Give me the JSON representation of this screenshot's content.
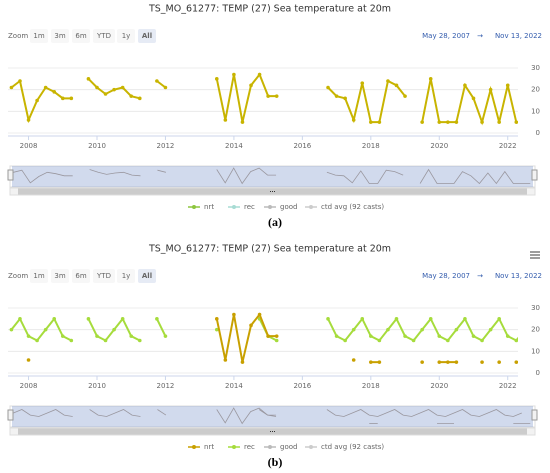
{
  "chart_data": [
    {
      "type": "line",
      "title": "TS_MO_61277: TEMP (27) Sea temperature at 20m",
      "caption": "(a)",
      "zoom_label": "Zoom",
      "zoom_buttons": [
        "1m",
        "3m",
        "6m",
        "YTD",
        "1y",
        "All"
      ],
      "zoom_selected": 5,
      "range_from": "May 28, 2007",
      "range_arrow": "→",
      "range_to": "Nov 13, 2022",
      "x": [
        2007.5,
        2007.75,
        2008,
        2008.25,
        2008.5,
        2008.75,
        2009,
        2009.25,
        2009.5,
        2009.75,
        2010,
        2010.25,
        2010.5,
        2010.75,
        2011,
        2011.25,
        2011.5,
        2011.75,
        2012,
        2012.25,
        2012.5,
        2012.75,
        2013,
        2013.25,
        2013.5,
        2013.75,
        2014,
        2014.25,
        2014.5,
        2014.75,
        2015,
        2015.25,
        2015.5,
        2015.75,
        2016,
        2016.25,
        2016.5,
        2016.75,
        2017,
        2017.25,
        2017.5,
        2017.75,
        2018,
        2018.25,
        2018.5,
        2018.75,
        2019,
        2019.25,
        2019.5,
        2019.75,
        2020,
        2020.25,
        2020.5,
        2020.75,
        2021,
        2021.25,
        2021.5,
        2021.75,
        2022,
        2022.25,
        2022.5,
        2022.75
      ],
      "series": [
        {
          "name": "nrt",
          "color": "#c8b400",
          "values": [
            21,
            24,
            6,
            15,
            21,
            19,
            16,
            16,
            null,
            25,
            21,
            18,
            20,
            21,
            17,
            16,
            null,
            24,
            21,
            null,
            null,
            null,
            null,
            null,
            25,
            6,
            27,
            5,
            22,
            27,
            17,
            17,
            null,
            null,
            null,
            null,
            null,
            21,
            17,
            16,
            6,
            23,
            5,
            5,
            24,
            22,
            17,
            null,
            5,
            25,
            5,
            5,
            5,
            22,
            16,
            5,
            20,
            5,
            22,
            5,
            5,
            5
          ]
        }
      ],
      "legend": [
        {
          "name": "nrt",
          "color": "#8dc63f"
        },
        {
          "name": "rec",
          "color": "#a8dcd4"
        },
        {
          "name": "good",
          "color": "#bbbbbb"
        },
        {
          "name": "ctd avg (92 casts)",
          "color": "#cccccc"
        }
      ],
      "xlim": [
        2007.4,
        2022.3
      ],
      "xticks": [
        2008,
        2010,
        2012,
        2014,
        2016,
        2018,
        2020,
        2022
      ],
      "ylim": [
        0,
        30
      ],
      "yticks": [
        0,
        10,
        20,
        30
      ],
      "grid": true
    },
    {
      "type": "line",
      "title": "TS_MO_61277: TEMP (27) Sea temperature at 20m",
      "caption": "(b)",
      "zoom_label": "Zoom",
      "zoom_buttons": [
        "1m",
        "3m",
        "6m",
        "YTD",
        "1y",
        "All"
      ],
      "zoom_selected": 5,
      "range_from": "May 28, 2007",
      "range_arrow": "→",
      "range_to": "Nov 13, 2022",
      "x": [
        2007.5,
        2007.75,
        2008,
        2008.25,
        2008.5,
        2008.75,
        2009,
        2009.25,
        2009.5,
        2009.75,
        2010,
        2010.25,
        2010.5,
        2010.75,
        2011,
        2011.25,
        2011.5,
        2011.75,
        2012,
        2012.25,
        2012.5,
        2012.75,
        2013,
        2013.25,
        2013.5,
        2013.75,
        2014,
        2014.25,
        2014.5,
        2014.75,
        2015,
        2015.25,
        2015.5,
        2015.75,
        2016,
        2016.25,
        2016.5,
        2016.75,
        2017,
        2017.25,
        2017.5,
        2017.75,
        2018,
        2018.25,
        2018.5,
        2018.75,
        2019,
        2019.25,
        2019.5,
        2019.75,
        2020,
        2020.25,
        2020.5,
        2020.75,
        2021,
        2021.25,
        2021.5,
        2021.75,
        2022,
        2022.25,
        2022.5,
        2022.75
      ],
      "series": [
        {
          "name": "rec",
          "color": "#a6dc3c",
          "values": [
            20,
            25,
            17,
            15,
            20,
            25,
            17,
            15,
            null,
            25,
            17,
            15,
            20,
            25,
            17,
            15,
            null,
            25,
            17,
            null,
            null,
            null,
            null,
            null,
            20,
            null,
            null,
            null,
            null,
            25,
            17,
            15,
            null,
            null,
            null,
            null,
            null,
            25,
            17,
            15,
            20,
            25,
            17,
            15,
            20,
            25,
            17,
            15,
            20,
            25,
            17,
            15,
            20,
            25,
            17,
            15,
            20,
            25,
            17,
            15,
            20,
            null
          ]
        },
        {
          "name": "nrt",
          "color": "#c8a000",
          "values": [
            null,
            null,
            6,
            null,
            null,
            null,
            null,
            null,
            null,
            null,
            null,
            null,
            null,
            null,
            null,
            null,
            null,
            null,
            null,
            null,
            null,
            null,
            null,
            null,
            25,
            6,
            27,
            5,
            22,
            27,
            17,
            17,
            null,
            null,
            null,
            null,
            null,
            null,
            null,
            null,
            6,
            null,
            5,
            5,
            null,
            null,
            null,
            null,
            5,
            null,
            5,
            5,
            5,
            null,
            null,
            5,
            null,
            5,
            null,
            5,
            5,
            5
          ]
        }
      ],
      "legend": [
        {
          "name": "nrt",
          "color": "#c8a000"
        },
        {
          "name": "rec",
          "color": "#a6dc3c"
        },
        {
          "name": "good",
          "color": "#bbbbbb"
        },
        {
          "name": "ctd avg (92 casts)",
          "color": "#cccccc"
        }
      ],
      "xlim": [
        2007.4,
        2022.3
      ],
      "xticks": [
        2008,
        2010,
        2012,
        2014,
        2016,
        2018,
        2020,
        2022
      ],
      "ylim": [
        0,
        30
      ],
      "yticks": [
        0,
        10,
        20,
        30
      ],
      "grid": true
    }
  ]
}
